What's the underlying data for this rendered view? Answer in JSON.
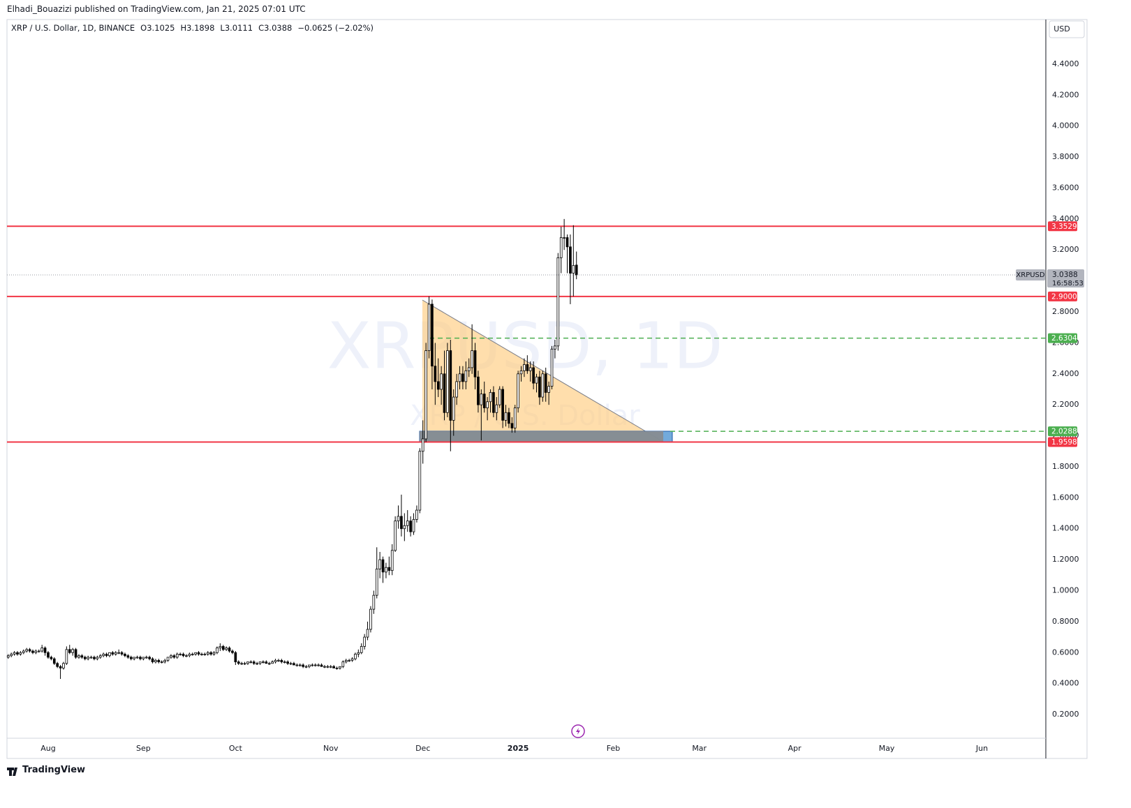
{
  "header": "Elhadi_Bouazizi published on TradingView.com, Jan 21, 2025 07:01 UTC",
  "footer": "TradingView",
  "chart_data": {
    "type": "candlestick",
    "symbol": "XRP / U.S. Dollar, 1D, BINANCE",
    "ohlc_keys": [
      "O",
      "H",
      "L",
      "C"
    ],
    "change": "−0.0625 (−2.02%)",
    "currency": "USD",
    "watermark": [
      "XRPUSD, 1D",
      "XRP / U.S. Dollar"
    ],
    "price_badge": {
      "ticker": "XRPUSD",
      "countdown": "16:58:53"
    },
    "up_color": "#ffffff",
    "down_color": "#000000",
    "wick_color": "#000000",
    "grid": false,
    "xlim": [
      -13.4,
      324.8
    ],
    "ylim": [
      0.047,
      4.688
    ],
    "xticks": [
      {
        "value": 0,
        "label": "Aug"
      },
      {
        "value": 31,
        "label": "Sep"
      },
      {
        "value": 61,
        "label": "Oct"
      },
      {
        "value": 92,
        "label": "Nov"
      },
      {
        "value": 122,
        "label": "Dec"
      },
      {
        "value": 153,
        "label": "2025"
      },
      {
        "value": 184,
        "label": "Feb"
      },
      {
        "value": 212,
        "label": "Mar"
      },
      {
        "value": 243,
        "label": "Apr"
      },
      {
        "value": 273,
        "label": "May"
      },
      {
        "value": 304,
        "label": "Jun"
      }
    ],
    "yticks": [
      {
        "value": 0.2,
        "label": "0.2000"
      },
      {
        "value": 0.4,
        "label": "0.4000"
      },
      {
        "value": 0.6,
        "label": "0.6000"
      },
      {
        "value": 0.8,
        "label": "0.8000"
      },
      {
        "value": 1.0,
        "label": "1.0000"
      },
      {
        "value": 1.2,
        "label": "1.2000"
      },
      {
        "value": 1.4,
        "label": "1.4000"
      },
      {
        "value": 1.6,
        "label": "1.6000"
      },
      {
        "value": 1.8,
        "label": "1.8000"
      },
      {
        "value": 2.0,
        "label": "2.0000"
      },
      {
        "value": 2.2,
        "label": "2.2000"
      },
      {
        "value": 2.4,
        "label": "2.4000"
      },
      {
        "value": 2.6,
        "label": "2.6000"
      },
      {
        "value": 2.8,
        "label": "2.8000"
      },
      {
        "value": 3.0,
        "label": "3.0000"
      },
      {
        "value": 3.2,
        "label": "3.2000"
      },
      {
        "value": 3.4,
        "label": "3.4000"
      },
      {
        "value": 3.6,
        "label": "3.6000"
      },
      {
        "value": 3.8,
        "label": "3.8000"
      },
      {
        "value": 4.0,
        "label": "4.0000"
      },
      {
        "value": 4.2,
        "label": "4.2000"
      },
      {
        "value": 4.4,
        "label": "4.4000"
      }
    ],
    "levels": [
      {
        "value": 3.3529,
        "label": "3.3529",
        "color": "#f23645",
        "style": "solid"
      },
      {
        "value": 2.9,
        "label": "2.9000",
        "color": "#f23645",
        "style": "solid"
      },
      {
        "value": 2.6304,
        "label": "2.6304",
        "color": "#4caf50",
        "style": "dashed"
      },
      {
        "value": 2.0288,
        "label": "2.0288",
        "color": "#4caf50",
        "style": "dashed"
      },
      {
        "value": 1.9598,
        "label": "1.9598",
        "color": "#f23645",
        "style": "solid"
      }
    ],
    "x": [
      -13,
      -12,
      -11,
      -10,
      -9,
      -8,
      -7,
      -6,
      -5,
      -4,
      -3,
      -2,
      -1,
      0,
      1,
      2,
      3,
      4,
      5,
      6,
      7,
      8,
      9,
      10,
      11,
      12,
      13,
      14,
      15,
      16,
      17,
      18,
      19,
      20,
      21,
      22,
      23,
      24,
      25,
      26,
      27,
      28,
      29,
      30,
      31,
      32,
      33,
      34,
      35,
      36,
      37,
      38,
      39,
      40,
      41,
      42,
      43,
      44,
      45,
      46,
      47,
      48,
      49,
      50,
      51,
      52,
      53,
      54,
      55,
      56,
      57,
      58,
      59,
      60,
      61,
      62,
      63,
      64,
      65,
      66,
      67,
      68,
      69,
      70,
      71,
      72,
      73,
      74,
      75,
      76,
      77,
      78,
      79,
      80,
      81,
      82,
      83,
      84,
      85,
      86,
      87,
      88,
      89,
      90,
      91,
      92,
      93,
      94,
      95,
      96,
      97,
      98,
      99,
      100,
      101,
      102,
      103,
      104,
      105,
      106,
      107,
      108,
      109,
      110,
      111,
      112,
      113,
      114,
      115,
      116,
      117,
      118,
      119,
      120,
      121,
      122,
      123,
      124,
      125,
      126,
      127,
      128,
      129,
      130,
      131,
      132,
      133,
      134,
      135,
      136,
      137,
      138,
      139,
      140,
      141,
      142,
      143,
      144,
      145,
      146,
      147,
      148,
      149,
      150,
      151,
      152,
      153,
      154,
      155,
      156,
      157,
      158,
      159,
      160,
      161,
      162,
      163,
      164,
      165,
      166,
      167,
      168,
      169,
      170,
      171,
      172
    ],
    "candles": [
      [
        0.57,
        0.59,
        0.56,
        0.58
      ],
      [
        0.58,
        0.6,
        0.57,
        0.59
      ],
      [
        0.59,
        0.61,
        0.58,
        0.6
      ],
      [
        0.6,
        0.61,
        0.58,
        0.59
      ],
      [
        0.59,
        0.61,
        0.58,
        0.6
      ],
      [
        0.6,
        0.62,
        0.59,
        0.61
      ],
      [
        0.61,
        0.63,
        0.6,
        0.62
      ],
      [
        0.62,
        0.63,
        0.6,
        0.61
      ],
      [
        0.61,
        0.62,
        0.59,
        0.6
      ],
      [
        0.6,
        0.62,
        0.59,
        0.61
      ],
      [
        0.61,
        0.62,
        0.6,
        0.61
      ],
      [
        0.61,
        0.65,
        0.6,
        0.63
      ],
      [
        0.63,
        0.64,
        0.58,
        0.6
      ],
      [
        0.6,
        0.61,
        0.56,
        0.57
      ],
      [
        0.57,
        0.58,
        0.55,
        0.56
      ],
      [
        0.56,
        0.57,
        0.52,
        0.53
      ],
      [
        0.53,
        0.54,
        0.5,
        0.51
      ],
      [
        0.51,
        0.52,
        0.43,
        0.5
      ],
      [
        0.5,
        0.54,
        0.49,
        0.53
      ],
      [
        0.53,
        0.64,
        0.52,
        0.62
      ],
      [
        0.62,
        0.65,
        0.59,
        0.6
      ],
      [
        0.6,
        0.63,
        0.58,
        0.62
      ],
      [
        0.62,
        0.63,
        0.56,
        0.57
      ],
      [
        0.57,
        0.59,
        0.56,
        0.58
      ],
      [
        0.58,
        0.59,
        0.56,
        0.57
      ],
      [
        0.57,
        0.58,
        0.55,
        0.56
      ],
      [
        0.56,
        0.58,
        0.55,
        0.57
      ],
      [
        0.57,
        0.58,
        0.56,
        0.57
      ],
      [
        0.57,
        0.58,
        0.55,
        0.56
      ],
      [
        0.56,
        0.58,
        0.55,
        0.57
      ],
      [
        0.57,
        0.59,
        0.56,
        0.58
      ],
      [
        0.58,
        0.6,
        0.57,
        0.59
      ],
      [
        0.59,
        0.6,
        0.57,
        0.58
      ],
      [
        0.58,
        0.6,
        0.57,
        0.6
      ],
      [
        0.6,
        0.61,
        0.58,
        0.59
      ],
      [
        0.59,
        0.61,
        0.58,
        0.6
      ],
      [
        0.6,
        0.62,
        0.59,
        0.6
      ],
      [
        0.6,
        0.61,
        0.58,
        0.59
      ],
      [
        0.59,
        0.6,
        0.57,
        0.58
      ],
      [
        0.58,
        0.59,
        0.56,
        0.57
      ],
      [
        0.57,
        0.58,
        0.55,
        0.56
      ],
      [
        0.56,
        0.57,
        0.55,
        0.57
      ],
      [
        0.57,
        0.58,
        0.56,
        0.57
      ],
      [
        0.57,
        0.58,
        0.55,
        0.56
      ],
      [
        0.56,
        0.57,
        0.55,
        0.57
      ],
      [
        0.57,
        0.58,
        0.56,
        0.57
      ],
      [
        0.57,
        0.58,
        0.55,
        0.56
      ],
      [
        0.56,
        0.57,
        0.53,
        0.54
      ],
      [
        0.54,
        0.56,
        0.53,
        0.55
      ],
      [
        0.55,
        0.56,
        0.53,
        0.54
      ],
      [
        0.54,
        0.55,
        0.53,
        0.54
      ],
      [
        0.54,
        0.56,
        0.53,
        0.55
      ],
      [
        0.55,
        0.57,
        0.54,
        0.57
      ],
      [
        0.57,
        0.59,
        0.56,
        0.58
      ],
      [
        0.58,
        0.59,
        0.56,
        0.57
      ],
      [
        0.57,
        0.6,
        0.56,
        0.59
      ],
      [
        0.59,
        0.6,
        0.58,
        0.59
      ],
      [
        0.59,
        0.6,
        0.57,
        0.58
      ],
      [
        0.58,
        0.59,
        0.57,
        0.58
      ],
      [
        0.58,
        0.6,
        0.57,
        0.59
      ],
      [
        0.59,
        0.6,
        0.58,
        0.59
      ],
      [
        0.59,
        0.6,
        0.58,
        0.6
      ],
      [
        0.6,
        0.61,
        0.58,
        0.59
      ],
      [
        0.59,
        0.6,
        0.58,
        0.59
      ],
      [
        0.59,
        0.6,
        0.58,
        0.59
      ],
      [
        0.59,
        0.61,
        0.58,
        0.6
      ],
      [
        0.6,
        0.61,
        0.58,
        0.59
      ],
      [
        0.59,
        0.61,
        0.58,
        0.6
      ],
      [
        0.6,
        0.64,
        0.59,
        0.63
      ],
      [
        0.63,
        0.66,
        0.61,
        0.64
      ],
      [
        0.64,
        0.65,
        0.61,
        0.62
      ],
      [
        0.62,
        0.64,
        0.61,
        0.63
      ],
      [
        0.63,
        0.64,
        0.6,
        0.61
      ],
      [
        0.61,
        0.62,
        0.59,
        0.6
      ],
      [
        0.6,
        0.61,
        0.52,
        0.54
      ],
      [
        0.54,
        0.55,
        0.52,
        0.53
      ],
      [
        0.53,
        0.54,
        0.52,
        0.53
      ],
      [
        0.53,
        0.54,
        0.52,
        0.53
      ],
      [
        0.53,
        0.54,
        0.52,
        0.54
      ],
      [
        0.54,
        0.55,
        0.53,
        0.54
      ],
      [
        0.54,
        0.55,
        0.52,
        0.53
      ],
      [
        0.53,
        0.54,
        0.52,
        0.53
      ],
      [
        0.53,
        0.54,
        0.52,
        0.54
      ],
      [
        0.54,
        0.55,
        0.53,
        0.54
      ],
      [
        0.54,
        0.55,
        0.53,
        0.53
      ],
      [
        0.53,
        0.54,
        0.52,
        0.53
      ],
      [
        0.53,
        0.55,
        0.53,
        0.54
      ],
      [
        0.54,
        0.56,
        0.53,
        0.55
      ],
      [
        0.55,
        0.56,
        0.54,
        0.55
      ],
      [
        0.55,
        0.56,
        0.53,
        0.54
      ],
      [
        0.54,
        0.55,
        0.53,
        0.54
      ],
      [
        0.54,
        0.55,
        0.52,
        0.53
      ],
      [
        0.53,
        0.54,
        0.52,
        0.53
      ],
      [
        0.53,
        0.54,
        0.52,
        0.52
      ],
      [
        0.52,
        0.53,
        0.51,
        0.52
      ],
      [
        0.52,
        0.53,
        0.51,
        0.52
      ],
      [
        0.52,
        0.53,
        0.5,
        0.51
      ],
      [
        0.51,
        0.52,
        0.5,
        0.51
      ],
      [
        0.51,
        0.52,
        0.5,
        0.52
      ],
      [
        0.52,
        0.53,
        0.51,
        0.52
      ],
      [
        0.52,
        0.53,
        0.51,
        0.52
      ],
      [
        0.52,
        0.53,
        0.51,
        0.52
      ],
      [
        0.52,
        0.53,
        0.51,
        0.51
      ],
      [
        0.51,
        0.52,
        0.5,
        0.51
      ],
      [
        0.51,
        0.52,
        0.5,
        0.51
      ],
      [
        0.51,
        0.52,
        0.5,
        0.51
      ],
      [
        0.51,
        0.52,
        0.5,
        0.5
      ],
      [
        0.5,
        0.51,
        0.49,
        0.5
      ],
      [
        0.5,
        0.51,
        0.49,
        0.51
      ],
      [
        0.51,
        0.55,
        0.5,
        0.54
      ],
      [
        0.54,
        0.56,
        0.53,
        0.55
      ],
      [
        0.55,
        0.56,
        0.54,
        0.55
      ],
      [
        0.55,
        0.57,
        0.54,
        0.56
      ],
      [
        0.56,
        0.6,
        0.55,
        0.59
      ],
      [
        0.59,
        0.62,
        0.57,
        0.6
      ],
      [
        0.6,
        0.66,
        0.59,
        0.64
      ],
      [
        0.64,
        0.72,
        0.62,
        0.7
      ],
      [
        0.7,
        0.8,
        0.68,
        0.75
      ],
      [
        0.75,
        0.9,
        0.73,
        0.88
      ],
      [
        0.88,
        1.0,
        0.85,
        0.97
      ],
      [
        0.97,
        1.28,
        0.95,
        1.14
      ],
      [
        1.14,
        1.25,
        1.08,
        1.2
      ],
      [
        1.2,
        1.22,
        1.05,
        1.12
      ],
      [
        1.12,
        1.18,
        1.08,
        1.15
      ],
      [
        1.15,
        1.22,
        1.1,
        1.13
      ],
      [
        1.13,
        1.3,
        1.1,
        1.26
      ],
      [
        1.26,
        1.48,
        1.25,
        1.45
      ],
      [
        1.45,
        1.55,
        1.4,
        1.48
      ],
      [
        1.48,
        1.62,
        1.35,
        1.4
      ],
      [
        1.4,
        1.5,
        1.32,
        1.42
      ],
      [
        1.42,
        1.52,
        1.38,
        1.45
      ],
      [
        1.45,
        1.48,
        1.35,
        1.38
      ],
      [
        1.38,
        1.5,
        1.36,
        1.46
      ],
      [
        1.46,
        1.55,
        1.44,
        1.52
      ],
      [
        1.52,
        1.92,
        1.5,
        1.9
      ],
      [
        1.9,
        2.1,
        1.82,
        1.98
      ],
      [
        1.98,
        2.6,
        1.96,
        2.55
      ],
      [
        2.55,
        2.9,
        2.5,
        2.85
      ],
      [
        2.85,
        2.88,
        2.3,
        2.45
      ],
      [
        2.45,
        2.6,
        2.2,
        2.35
      ],
      [
        2.35,
        2.5,
        2.25,
        2.3
      ],
      [
        2.3,
        2.45,
        2.2,
        2.4
      ],
      [
        2.4,
        2.55,
        2.1,
        2.15
      ],
      [
        2.15,
        2.6,
        2.12,
        2.55
      ],
      [
        2.55,
        2.62,
        1.9,
        2.1
      ],
      [
        2.1,
        2.3,
        2.0,
        2.25
      ],
      [
        2.25,
        2.4,
        2.2,
        2.35
      ],
      [
        2.35,
        2.45,
        2.3,
        2.4
      ],
      [
        2.4,
        2.45,
        2.3,
        2.35
      ],
      [
        2.35,
        2.48,
        2.3,
        2.42
      ],
      [
        2.42,
        2.5,
        2.38,
        2.44
      ],
      [
        2.44,
        2.72,
        2.4,
        2.55
      ],
      [
        2.55,
        2.6,
        2.3,
        2.38
      ],
      [
        2.38,
        2.42,
        2.15,
        2.2
      ],
      [
        2.2,
        2.3,
        1.97,
        2.27
      ],
      [
        2.27,
        2.35,
        2.15,
        2.18
      ],
      [
        2.18,
        2.25,
        2.1,
        2.22
      ],
      [
        2.22,
        2.3,
        2.15,
        2.28
      ],
      [
        2.28,
        2.32,
        2.12,
        2.15
      ],
      [
        2.15,
        2.25,
        2.1,
        2.2
      ],
      [
        2.2,
        2.32,
        2.18,
        2.3
      ],
      [
        2.3,
        2.32,
        2.05,
        2.1
      ],
      [
        2.1,
        2.2,
        2.06,
        2.15
      ],
      [
        2.15,
        2.18,
        2.05,
        2.08
      ],
      [
        2.08,
        2.12,
        2.02,
        2.05
      ],
      [
        2.05,
        2.2,
        2.02,
        2.18
      ],
      [
        2.18,
        2.42,
        2.15,
        2.4
      ],
      [
        2.4,
        2.45,
        2.35,
        2.42
      ],
      [
        2.42,
        2.5,
        2.38,
        2.46
      ],
      [
        2.46,
        2.52,
        2.4,
        2.42
      ],
      [
        2.42,
        2.48,
        2.35,
        2.44
      ],
      [
        2.44,
        2.48,
        2.3,
        2.34
      ],
      [
        2.34,
        2.4,
        2.28,
        2.38
      ],
      [
        2.38,
        2.42,
        2.2,
        2.25
      ],
      [
        2.25,
        2.42,
        2.22,
        2.4
      ],
      [
        2.4,
        2.44,
        2.22,
        2.28
      ],
      [
        2.28,
        2.35,
        2.2,
        2.32
      ],
      [
        2.32,
        2.58,
        2.3,
        2.56
      ],
      [
        2.56,
        2.62,
        2.5,
        2.58
      ],
      [
        2.58,
        3.18,
        2.55,
        3.15
      ],
      [
        3.15,
        3.35,
        3.05,
        3.28
      ],
      [
        3.28,
        3.4,
        3.2,
        3.28
      ],
      [
        3.28,
        3.3,
        3.05,
        3.22
      ],
      [
        3.22,
        3.3,
        2.85,
        3.05
      ],
      [
        3.05,
        3.36,
        2.9,
        3.1
      ],
      [
        3.1025,
        3.1898,
        3.0111,
        3.0388
      ]
    ]
  }
}
